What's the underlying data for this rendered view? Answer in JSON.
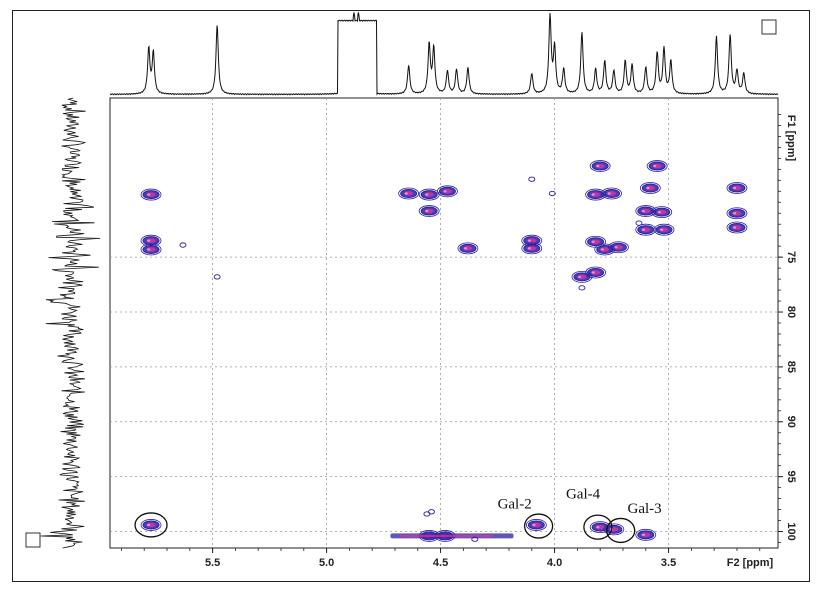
{
  "chart_data": {
    "type": "heatmap",
    "x_axis": {
      "label": "F2 [ppm]",
      "ticks": [
        "5.5",
        "5.0",
        "4.5",
        "4.0",
        "3.5"
      ],
      "tick_values": [
        5.5,
        5.0,
        4.5,
        4.0,
        3.5
      ],
      "range": [
        5.95,
        3.02
      ],
      "reversed": true
    },
    "y_axis": {
      "label": "F1 [ppm]",
      "ticks": [
        "75",
        "80",
        "85",
        "90",
        "95",
        "100"
      ],
      "tick_values": [
        75,
        80,
        85,
        90,
        95,
        100
      ],
      "range": [
        60.5,
        101.5
      ],
      "reversed": true,
      "position": "right"
    },
    "grid": true,
    "colors": {
      "positive": "#2b1fa3",
      "negative": "#e0329c",
      "spectrum": "#111111"
    },
    "peaks": [
      {
        "x": 5.77,
        "y": 69.3
      },
      {
        "x": 5.77,
        "y": 73.5
      },
      {
        "x": 5.77,
        "y": 74.3
      },
      {
        "x": 5.77,
        "y": 99.4
      },
      {
        "x": 4.64,
        "y": 69.2
      },
      {
        "x": 4.55,
        "y": 69.3
      },
      {
        "x": 4.47,
        "y": 69.0
      },
      {
        "x": 4.55,
        "y": 70.8
      },
      {
        "x": 4.38,
        "y": 74.2
      },
      {
        "x": 4.1,
        "y": 73.5
      },
      {
        "x": 4.1,
        "y": 74.2
      },
      {
        "x": 3.8,
        "y": 66.7
      },
      {
        "x": 3.82,
        "y": 69.3
      },
      {
        "x": 3.75,
        "y": 69.2
      },
      {
        "x": 3.82,
        "y": 73.6
      },
      {
        "x": 3.72,
        "y": 74.1
      },
      {
        "x": 3.78,
        "y": 74.3
      },
      {
        "x": 3.82,
        "y": 76.4
      },
      {
        "x": 3.88,
        "y": 76.8
      },
      {
        "x": 3.55,
        "y": 66.7
      },
      {
        "x": 3.58,
        "y": 68.7
      },
      {
        "x": 3.6,
        "y": 70.8
      },
      {
        "x": 3.53,
        "y": 70.9
      },
      {
        "x": 3.6,
        "y": 72.5
      },
      {
        "x": 3.52,
        "y": 72.5
      },
      {
        "x": 3.2,
        "y": 68.7
      },
      {
        "x": 3.2,
        "y": 71.0
      },
      {
        "x": 3.2,
        "y": 72.3
      },
      {
        "x": 4.08,
        "y": 99.4
      },
      {
        "x": 3.8,
        "y": 99.6
      },
      {
        "x": 3.74,
        "y": 99.8
      },
      {
        "x": 3.6,
        "y": 100.3
      },
      {
        "x": 4.55,
        "y": 100.4
      },
      {
        "x": 4.48,
        "y": 100.4
      }
    ],
    "h_streak": {
      "x_from": 4.72,
      "x_to": 4.18,
      "y": 100.4
    },
    "small_contours": [
      {
        "x": 5.48,
        "y": 76.8
      },
      {
        "x": 4.56,
        "y": 98.4
      },
      {
        "x": 4.35,
        "y": 100.7
      },
      {
        "x": 3.88,
        "y": 77.8
      },
      {
        "x": 4.01,
        "y": 69.2
      },
      {
        "x": 4.1,
        "y": 67.9
      },
      {
        "x": 4.54,
        "y": 98.2
      },
      {
        "x": 3.63,
        "y": 71.9
      },
      {
        "x": 5.63,
        "y": 73.9
      }
    ],
    "projection_f2_peaks": [
      {
        "x": 5.78,
        "h": 0.55
      },
      {
        "x": 5.76,
        "h": 0.5
      },
      {
        "x": 5.48,
        "h": 0.85
      },
      {
        "x": 4.88,
        "h": 1.0
      },
      {
        "x": 4.86,
        "h": 1.0
      },
      {
        "x": 4.64,
        "h": 0.35
      },
      {
        "x": 4.55,
        "h": 0.6
      },
      {
        "x": 4.53,
        "h": 0.55
      },
      {
        "x": 4.47,
        "h": 0.28
      },
      {
        "x": 4.43,
        "h": 0.3
      },
      {
        "x": 4.38,
        "h": 0.32
      },
      {
        "x": 4.1,
        "h": 0.25
      },
      {
        "x": 4.02,
        "h": 0.95
      },
      {
        "x": 4.0,
        "h": 0.55
      },
      {
        "x": 3.96,
        "h": 0.3
      },
      {
        "x": 3.88,
        "h": 0.75
      },
      {
        "x": 3.82,
        "h": 0.3
      },
      {
        "x": 3.78,
        "h": 0.4
      },
      {
        "x": 3.74,
        "h": 0.28
      },
      {
        "x": 3.69,
        "h": 0.4
      },
      {
        "x": 3.66,
        "h": 0.35
      },
      {
        "x": 3.6,
        "h": 0.32
      },
      {
        "x": 3.55,
        "h": 0.5
      },
      {
        "x": 3.52,
        "h": 0.55
      },
      {
        "x": 3.49,
        "h": 0.4
      },
      {
        "x": 3.29,
        "h": 0.7
      },
      {
        "x": 3.23,
        "h": 0.72
      },
      {
        "x": 3.2,
        "h": 0.28
      },
      {
        "x": 3.17,
        "h": 0.25
      }
    ],
    "projection_f1_peaks": [
      68,
      70.4,
      71.9,
      73.1,
      74.8,
      76.1,
      78.9,
      81.1,
      100.2
    ],
    "annotations": [
      {
        "text": "Gal-2",
        "x": 4.25,
        "y": 97.9
      },
      {
        "text": "Gal-4",
        "x": 3.95,
        "y": 97.0
      },
      {
        "text": "Gal-3",
        "x": 3.68,
        "y": 98.3
      }
    ],
    "circles": [
      {
        "x": 5.77,
        "y": 99.4
      },
      {
        "x": 4.07,
        "y": 99.5
      },
      {
        "x": 3.81,
        "y": 99.6
      },
      {
        "x": 3.71,
        "y": 99.9
      }
    ]
  }
}
